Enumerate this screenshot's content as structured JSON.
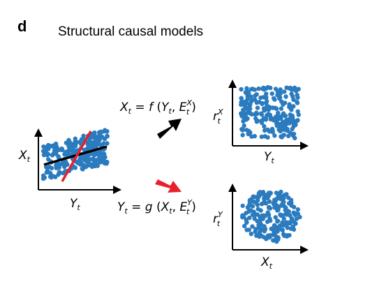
{
  "panel": {
    "letter": "d",
    "title": "Structural causal models"
  },
  "left_plot": {
    "y_axis_label": "X",
    "y_axis_sub": "t",
    "x_axis_label": "Y",
    "x_axis_sub": "t"
  },
  "top_equation": {
    "lhs": "X",
    "lhs_sub": "t",
    "eq": " = ",
    "fn": "f",
    "open": " (",
    "arg1": "Y",
    "arg1_sub": "t",
    "comma": ", ",
    "arg2": "E",
    "arg2_sup": "X",
    "arg2_sub": "t",
    "close": ")"
  },
  "bottom_equation": {
    "lhs": "Y",
    "lhs_sub": "t",
    "eq": " = ",
    "fn": "g",
    "open": " (",
    "arg1": "X",
    "arg1_sub": "t",
    "comma": ", ",
    "arg2": "E",
    "arg2_sup": "Y",
    "arg2_sub": "t",
    "close": ")"
  },
  "top_right_plot": {
    "y_axis_label": "r",
    "y_axis_sup": "X",
    "y_axis_sub": "t",
    "x_axis_label": "Y",
    "x_axis_sub": "t"
  },
  "bottom_right_plot": {
    "y_axis_label": "r",
    "y_axis_sup": "Y",
    "y_axis_sub": "t",
    "x_axis_label": "X",
    "x_axis_sub": "t"
  },
  "colors": {
    "points": "#2b7bbf",
    "fit_black": "#000000",
    "fit_red": "#e8202a",
    "arrow_black": "#000000",
    "arrow_red": "#e8202a"
  }
}
